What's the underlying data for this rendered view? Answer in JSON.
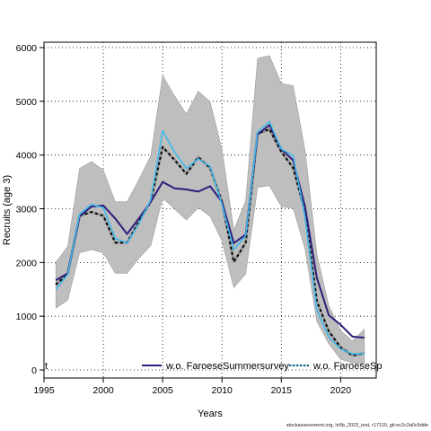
{
  "chart_data": {
    "type": "line",
    "xlabel": "Years",
    "ylabel": "Recruits (age 3)",
    "xlim": [
      1995,
      2023
    ],
    "ylim": [
      -150,
      6100
    ],
    "x_ticks": [
      1995,
      2000,
      2005,
      2010,
      2015,
      2020
    ],
    "y_ticks": [
      0,
      1000,
      2000,
      3000,
      4000,
      5000,
      6000
    ],
    "grid": "dotted",
    "legend_position": "bottom",
    "x": [
      1996,
      1997,
      1998,
      1999,
      2000,
      2001,
      2002,
      2003,
      2004,
      2005,
      2006,
      2007,
      2008,
      2009,
      2010,
      2011,
      2012,
      2013,
      2014,
      2015,
      2016,
      2017,
      2018,
      2019,
      2020,
      2021,
      2022
    ],
    "confidence_band": {
      "color": "#bebebe",
      "upper": [
        2000,
        2300,
        3750,
        3880,
        3720,
        3130,
        3130,
        3540,
        3990,
        5480,
        5100,
        4760,
        5190,
        4990,
        4100,
        2600,
        3150,
        5800,
        5850,
        5330,
        5290,
        4090,
        2150,
        1200,
        730,
        540,
        760
      ],
      "lower": [
        1150,
        1300,
        2180,
        2240,
        2180,
        1800,
        1800,
        2080,
        2320,
        3200,
        3000,
        2790,
        3020,
        2860,
        2400,
        1530,
        1790,
        3400,
        3430,
        3040,
        3010,
        2250,
        900,
        490,
        200,
        130,
        120
      ]
    },
    "series": [
      {
        "name": "",
        "style": "dashed-black-on-grey",
        "color": "#000000",
        "values": [
          1590,
          1790,
          2870,
          2940,
          2870,
          2370,
          2370,
          2760,
          3140,
          4150,
          3910,
          3650,
          3960,
          3760,
          3130,
          2010,
          2370,
          4400,
          4480,
          4060,
          3760,
          2950,
          1280,
          720,
          420,
          270,
          310
        ]
      },
      {
        "name": "w.o. FaroeseSummersurvey",
        "style": "solid",
        "color": "#2e1d7a",
        "values": [
          1670,
          1800,
          2860,
          3040,
          3060,
          2820,
          2530,
          2820,
          3130,
          3500,
          3380,
          3360,
          3320,
          3420,
          3130,
          2360,
          2520,
          4380,
          4560,
          4110,
          3900,
          3040,
          1710,
          1020,
          840,
          620,
          600
        ]
      },
      {
        "name": "w.o. FaroeseSp",
        "style": "solid",
        "color": "#3fb7ea",
        "values": [
          1500,
          1780,
          2900,
          3080,
          3020,
          2450,
          2360,
          2720,
          3170,
          4450,
          4060,
          3750,
          3930,
          3790,
          3080,
          2240,
          2500,
          4430,
          4620,
          4110,
          3990,
          2850,
          1110,
          610,
          390,
          300,
          300
        ]
      }
    ],
    "legend": [
      {
        "label": "t",
        "color": "#000000"
      },
      {
        "label": "w.o. FaroeseSummersurvey",
        "color": "#2e1d7a"
      },
      {
        "label": "w.o. FaroeseSp",
        "color": "#3fb7ea"
      }
    ]
  },
  "footer_text": "stockassessment.org, ln5b_2023_test, r17110, git:ec2c2a0c6dde"
}
